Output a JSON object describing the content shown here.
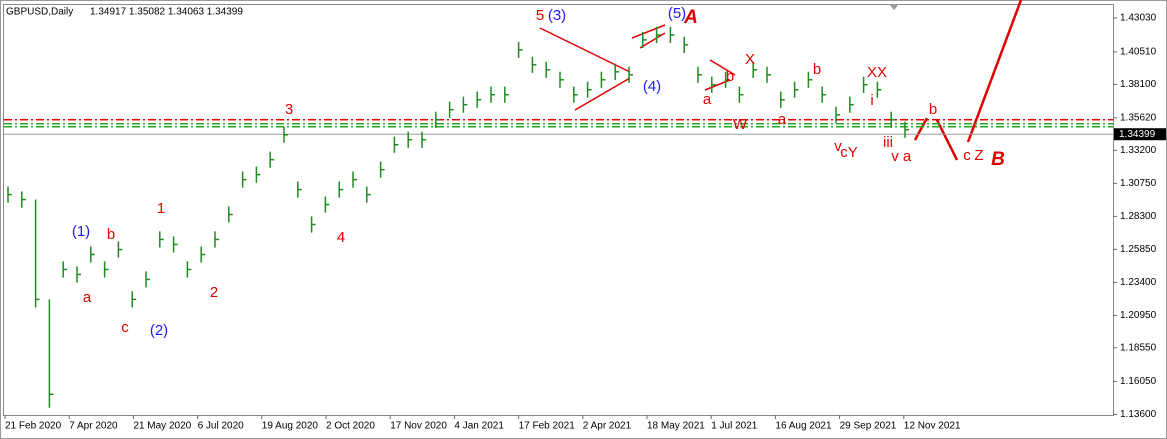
{
  "chart_data": {
    "type": "ohlc",
    "title": "GBPUSD,Daily",
    "quote": "1.34917 1.35082 1.34063 1.34399",
    "color": "#1f8a1f",
    "x_labels": [
      "21 Feb 2020",
      "7 Apr 2020",
      "21 May 2020",
      "6 Jul 2020",
      "19 Aug 2020",
      "2 Oct 2020",
      "17 Nov 2020",
      "4 Jan 2021",
      "17 Feb 2021",
      "2 Apr 2021",
      "18 May 2021",
      "1 Jul 2021",
      "16 Aug 2021",
      "29 Sep 2021",
      "12 Nov 2021"
    ],
    "high": [
      1.3052,
      1.3015,
      1.2955,
      1.2214,
      1.2496,
      1.2459,
      1.2607,
      1.2496,
      1.2644,
      1.2274,
      1.2422,
      1.2719,
      1.2682,
      1.2496,
      1.2607,
      1.2719,
      1.2904,
      1.3163,
      1.32,
      1.3311,
      1.3496,
      1.3089,
      1.283,
      1.2978,
      1.3089,
      1.3163,
      1.3052,
      1.3237,
      1.3422,
      1.3459,
      1.3459,
      1.3607,
      1.3682,
      1.3719,
      1.3756,
      1.3793,
      1.3793,
      1.4126,
      1.4015,
      1.3978,
      1.3904,
      1.3793,
      1.383,
      1.3904,
      1.3963,
      1.3941,
      1.42,
      1.4237,
      1.4237,
      1.4163,
      1.3941,
      1.3867,
      1.3904,
      1.3793,
      1.3978,
      1.3941,
      1.3756,
      1.383,
      1.3904,
      1.3793,
      1.3644,
      1.3719,
      1.3867,
      1.383,
      1.3607,
      1.3533
    ],
    "low": [
      1.2932,
      1.2895,
      1.2154,
      1.141,
      1.2376,
      1.2339,
      1.2487,
      1.2376,
      1.2524,
      1.2154,
      1.2302,
      1.2599,
      1.2562,
      1.2376,
      1.2487,
      1.2599,
      1.2784,
      1.3043,
      1.308,
      1.3191,
      1.3376,
      1.2969,
      1.271,
      1.2858,
      1.2969,
      1.3043,
      1.2932,
      1.3117,
      1.3302,
      1.3339,
      1.3339,
      1.3487,
      1.3562,
      1.3599,
      1.3636,
      1.3673,
      1.3673,
      1.4006,
      1.3895,
      1.3858,
      1.3784,
      1.3673,
      1.371,
      1.3784,
      1.3843,
      1.3821,
      1.408,
      1.4117,
      1.4117,
      1.4043,
      1.3821,
      1.3747,
      1.3784,
      1.3673,
      1.3858,
      1.3821,
      1.3636,
      1.371,
      1.3784,
      1.3673,
      1.3524,
      1.3599,
      1.3747,
      1.371,
      1.3487,
      1.3413
    ],
    "close": [
      1.2992,
      1.2955,
      1.2214,
      1.151,
      1.2436,
      1.2399,
      1.2547,
      1.2436,
      1.2584,
      1.2214,
      1.2362,
      1.2659,
      1.2622,
      1.2436,
      1.2547,
      1.2659,
      1.2844,
      1.3103,
      1.314,
      1.3251,
      1.3436,
      1.3029,
      1.277,
      1.2918,
      1.3029,
      1.3103,
      1.2992,
      1.3177,
      1.3362,
      1.3399,
      1.3399,
      1.3547,
      1.3622,
      1.3659,
      1.3696,
      1.3733,
      1.3733,
      1.4066,
      1.3955,
      1.3918,
      1.3844,
      1.3733,
      1.377,
      1.3844,
      1.3903,
      1.3881,
      1.414,
      1.4177,
      1.4177,
      1.4103,
      1.3881,
      1.3807,
      1.3844,
      1.3733,
      1.3918,
      1.3881,
      1.3696,
      1.377,
      1.3844,
      1.3733,
      1.3584,
      1.3659,
      1.3807,
      1.377,
      1.3547,
      1.3473
    ],
    "ylim": [
      1.1356,
      1.4399
    ],
    "yticks": [
      {
        "value": 1.4303,
        "label": "1.43030"
      },
      {
        "value": 1.4051,
        "label": "1.40510"
      },
      {
        "value": 1.381,
        "label": "1.38100"
      },
      {
        "value": 1.3562,
        "label": "1.35620"
      },
      {
        "value": 1.332,
        "label": "1.33200"
      },
      {
        "value": 1.3075,
        "label": "1.30750"
      },
      {
        "value": 1.283,
        "label": "1.28300"
      },
      {
        "value": 1.2585,
        "label": "1.25850"
      },
      {
        "value": 1.234,
        "label": "1.23400"
      },
      {
        "value": 1.2095,
        "label": "1.20950"
      },
      {
        "value": 1.1855,
        "label": "1.18550"
      },
      {
        "value": 1.1605,
        "label": "1.16050"
      },
      {
        "value": 1.136,
        "label": "1.13600"
      }
    ],
    "current_price": {
      "value": 1.34399,
      "label": "1.34399"
    },
    "levels": [
      {
        "value": 1.3547,
        "color": "#e00000"
      },
      {
        "value": 1.3518,
        "color": "#22aa22"
      },
      {
        "value": 1.3495,
        "color": "#22aa22"
      }
    ],
    "annotations": [
      {
        "text": "5",
        "color": "#e00000"
      },
      {
        "text": "(3)",
        "color": "#1a1aff"
      },
      {
        "text": "(5)",
        "color": "#1a1aff"
      },
      {
        "text": "A",
        "color": "#e00000"
      },
      {
        "text": "(4)",
        "color": "#1a1aff"
      },
      {
        "text": "X",
        "color": "#e00000"
      },
      {
        "text": "b",
        "color": "#e00000"
      },
      {
        "text": "a",
        "color": "#e00000"
      },
      {
        "text": "W",
        "color": "#e00000"
      },
      {
        "text": "a",
        "color": "#e00000"
      },
      {
        "text": "b",
        "color": "#e00000"
      },
      {
        "text": "XX",
        "color": "#e00000"
      },
      {
        "text": "i",
        "color": "#e00000"
      },
      {
        "text": "v",
        "color": "#e00000"
      },
      {
        "text": "cY",
        "color": "#e00000"
      },
      {
        "text": "iii",
        "color": "#e00000"
      },
      {
        "text": "v",
        "color": "#e00000"
      },
      {
        "text": "a",
        "color": "#e00000"
      },
      {
        "text": "b",
        "color": "#e00000"
      },
      {
        "text": "c",
        "color": "#e00000"
      },
      {
        "text": "Z",
        "color": "#e00000"
      },
      {
        "text": "B",
        "color": "#e00000"
      },
      {
        "text": "3",
        "color": "#e00000"
      },
      {
        "text": "4",
        "color": "#e00000"
      },
      {
        "text": "(1)",
        "color": "#1a1aff"
      },
      {
        "text": "b",
        "color": "#e00000"
      },
      {
        "text": "1",
        "color": "#e00000"
      },
      {
        "text": "a",
        "color": "#e00000"
      },
      {
        "text": "c",
        "color": "#e00000"
      },
      {
        "text": "(2)",
        "color": "#1a1aff"
      },
      {
        "text": "2",
        "color": "#e00000"
      }
    ]
  }
}
